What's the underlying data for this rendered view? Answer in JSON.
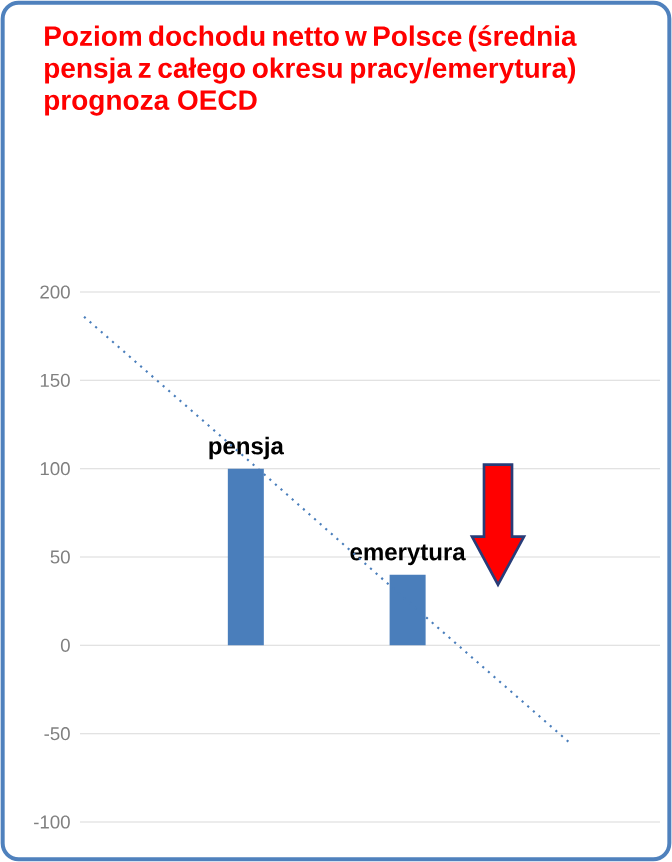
{
  "chart_data": {
    "type": "bar",
    "title": "Poziom dochodu netto w Polsce (średnia pensja z całego okresu pracy/emerytura) prognoza OECD",
    "categories": [
      null,
      "pensja",
      "emerytura",
      null
    ],
    "series": [
      {
        "color": "#4a7ebb",
        "values": [
          null,
          100,
          40,
          null
        ]
      },
      {
        "type": "line",
        "color": "#4a7ebb",
        "line_style": "dotted",
        "values": [
          186,
          106,
          25,
          -55
        ]
      }
    ],
    "ylim": [
      -100,
      200
    ],
    "yticks": [
      -100,
      -50,
      0,
      50,
      100,
      150,
      200
    ],
    "grid": "y",
    "marker": "none"
  }
}
